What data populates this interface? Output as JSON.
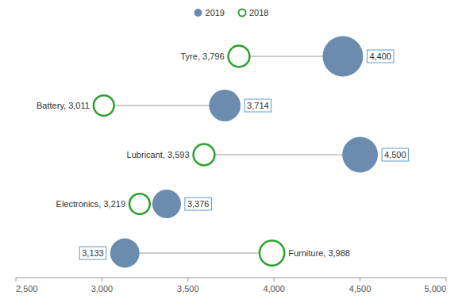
{
  "chart_data": {
    "type": "dumbbell",
    "categories": [
      "Tyre",
      "Battery",
      "Lubricant",
      "Electronics",
      "Furniture"
    ],
    "series": [
      {
        "name": "2019",
        "color": "#6b8cae",
        "values": [
          4400,
          3714,
          4500,
          3376,
          3133
        ],
        "sizes": [
          1800,
          1100,
          1400,
          900,
          950
        ],
        "value_labels": [
          "4,400",
          "3,714",
          "4,500",
          "3,376",
          "3,133"
        ]
      },
      {
        "name": "2018",
        "color": "#2ca02c",
        "values": [
          3796,
          3011,
          3593,
          3219,
          3988
        ],
        "sizes": [
          500,
          460,
          500,
          460,
          680
        ],
        "value_labels": [
          "3,796",
          "3,011",
          "3,593",
          "3,219",
          "3,988"
        ]
      }
    ],
    "xlim": [
      2500,
      5000
    ],
    "xticks": [
      {
        "value": 2500,
        "label": "2,500"
      },
      {
        "value": 3000,
        "label": "3,000"
      },
      {
        "value": 3500,
        "label": "3,500"
      },
      {
        "value": 4000,
        "label": "4,000"
      },
      {
        "value": 4500,
        "label": "4,500"
      },
      {
        "value": 5000,
        "label": "5,000"
      }
    ],
    "data_labels": true,
    "legend": "top",
    "tick_labels": "x"
  }
}
